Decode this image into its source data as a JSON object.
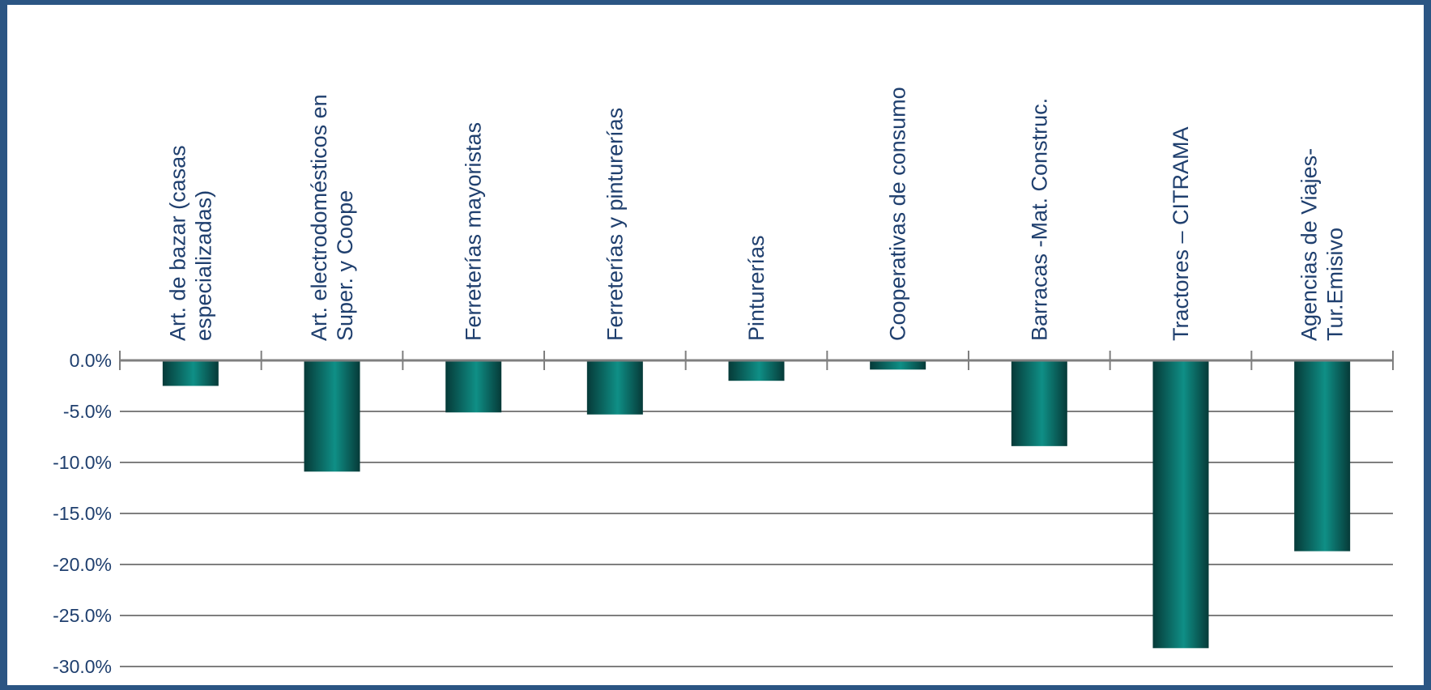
{
  "chart_data": {
    "type": "bar",
    "orientation": "vertical",
    "title": "",
    "xlabel": "",
    "ylabel": "",
    "categories": [
      [
        "Art. de bazar  (casas",
        "especializadas)"
      ],
      [
        "Art. electrodomésticos en",
        "Super. y Coope"
      ],
      [
        "Ferreterías mayoristas"
      ],
      [
        "Ferreterías y pinturerías"
      ],
      [
        "Pinturerías"
      ],
      [
        "Cooperativas de consumo"
      ],
      [
        "Barracas -Mat. Construc."
      ],
      [
        "Tractores – CITRAMA"
      ],
      [
        "Agencias de Viajes-",
        "Tur.Emisivo"
      ]
    ],
    "values": [
      -2.5,
      -10.9,
      -5.1,
      -5.3,
      -2.0,
      -0.9,
      -8.4,
      -28.2,
      -18.7
    ],
    "y_ticks": [
      0,
      -5,
      -10,
      -15,
      -20,
      -25,
      -30
    ],
    "y_tick_labels": [
      "0.0%",
      "-5.0%",
      "-10.0%",
      "-15.0%",
      "-20.0%",
      "-25.0%",
      "-30.0%"
    ],
    "ylim": [
      -30,
      0
    ],
    "grid": true,
    "legend": "none",
    "colors": {
      "background": "#2b5583",
      "plot_background": "#ffffff",
      "bar_dark": "#063a38",
      "bar_light": "#0f8f86",
      "gridline": "#7f7f7f",
      "text": "#1f3f6e"
    }
  }
}
